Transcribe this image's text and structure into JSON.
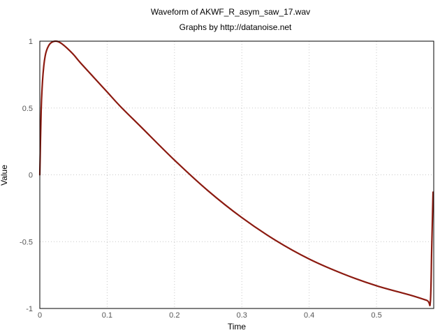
{
  "chart_data": {
    "type": "line",
    "title": "Waveform of AKWF_R_asym_saw_17.wav",
    "subtitle": "Graphs by http://datanoise.net",
    "xlabel": "Time",
    "ylabel": "Value",
    "xlim": [
      0,
      0.585
    ],
    "ylim": [
      -1,
      1
    ],
    "x_ticks": [
      0,
      0.1,
      0.2,
      0.3,
      0.4,
      0.5
    ],
    "x_tick_labels": [
      "0",
      "0.1",
      "0.2",
      "0.3",
      "0.4",
      "0.5"
    ],
    "y_ticks": [
      1,
      0.5,
      0,
      -0.5,
      -1
    ],
    "y_tick_labels": [
      "1",
      "0.5",
      "0",
      "-0.5",
      "-1"
    ],
    "grid": true,
    "colors": {
      "series": "#8b1a10",
      "grid": "#c8c8c8",
      "tick_text": "#555555"
    },
    "series": [
      {
        "x": [
          0,
          0.002,
          0.004,
          0.006,
          0.008,
          0.01,
          0.013,
          0.016,
          0.02,
          0.024,
          0.028,
          0.033,
          0.04,
          0.05,
          0.06,
          0.08,
          0.1,
          0.12,
          0.15,
          0.2,
          0.25,
          0.3,
          0.35,
          0.4,
          0.45,
          0.5,
          0.55,
          0.575,
          0.58,
          0.582,
          0.584
        ],
        "y": [
          0,
          0.48,
          0.7,
          0.82,
          0.89,
          0.93,
          0.965,
          0.985,
          0.997,
          1.0,
          0.995,
          0.98,
          0.95,
          0.9,
          0.84,
          0.73,
          0.62,
          0.51,
          0.36,
          0.11,
          -0.12,
          -0.32,
          -0.49,
          -0.63,
          -0.74,
          -0.83,
          -0.9,
          -0.94,
          -0.95,
          -0.55,
          -0.13
        ]
      }
    ]
  }
}
